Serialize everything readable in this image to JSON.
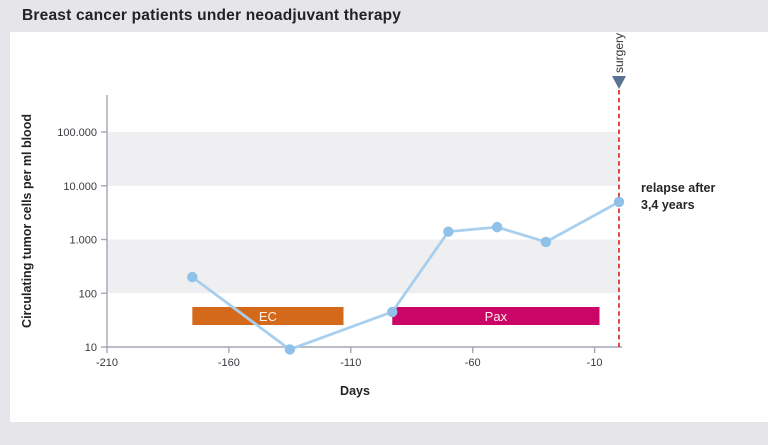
{
  "title": "Breast cancer patients under neoadjuvant therapy",
  "colors": {
    "page_bg": "#e5e5ea",
    "card_bg": "#ffffff",
    "band": "#efeff2",
    "axis": "#a3a7b5",
    "line": "#a8cfee",
    "marker": "#8fc1e9",
    "ec_bar": "#d4691c",
    "pax_bar": "#cb0468",
    "surgery_line": "#e23333",
    "surgery_arrow": "#5b7392"
  },
  "chart_data": {
    "type": "line",
    "title": "Breast cancer patients under neoadjuvant therapy",
    "xlabel": "Days",
    "ylabel": "Circulating tumor cells per ml blood",
    "y_scale": "log",
    "xlim": [
      -210,
      0
    ],
    "ylim": [
      10,
      100000
    ],
    "x_ticks": [
      -210,
      -160,
      -110,
      -60,
      -10
    ],
    "x_tick_labels": [
      "-210",
      "-160",
      "-110",
      "-60",
      "-10"
    ],
    "y_tick_values": [
      100000,
      10000,
      1000,
      100,
      10
    ],
    "y_tick_labels": [
      "100.000",
      "10.000",
      "1.000",
      "100",
      "10"
    ],
    "shaded_bands": [
      [
        100000,
        10000
      ],
      [
        1000,
        100
      ]
    ],
    "grid": "off",
    "legend": "none",
    "series": [
      {
        "name": "circulating-tumor-cells",
        "x": [
          -175,
          -135,
          -93,
          -70,
          -50,
          -30,
          0
        ],
        "y": [
          200,
          9,
          45,
          1400,
          1700,
          900,
          5000
        ]
      }
    ],
    "treatment_bars": [
      {
        "label": "EC",
        "start": -175,
        "end": -113,
        "color": "#d4691c"
      },
      {
        "label": "Pax",
        "start": -93,
        "end": -8,
        "color": "#cb0468"
      }
    ],
    "annotations": {
      "surgery_label": "surgery",
      "surgery_day": 0,
      "relapse_line1": "relapse after",
      "relapse_line2": "3,4 years"
    }
  }
}
